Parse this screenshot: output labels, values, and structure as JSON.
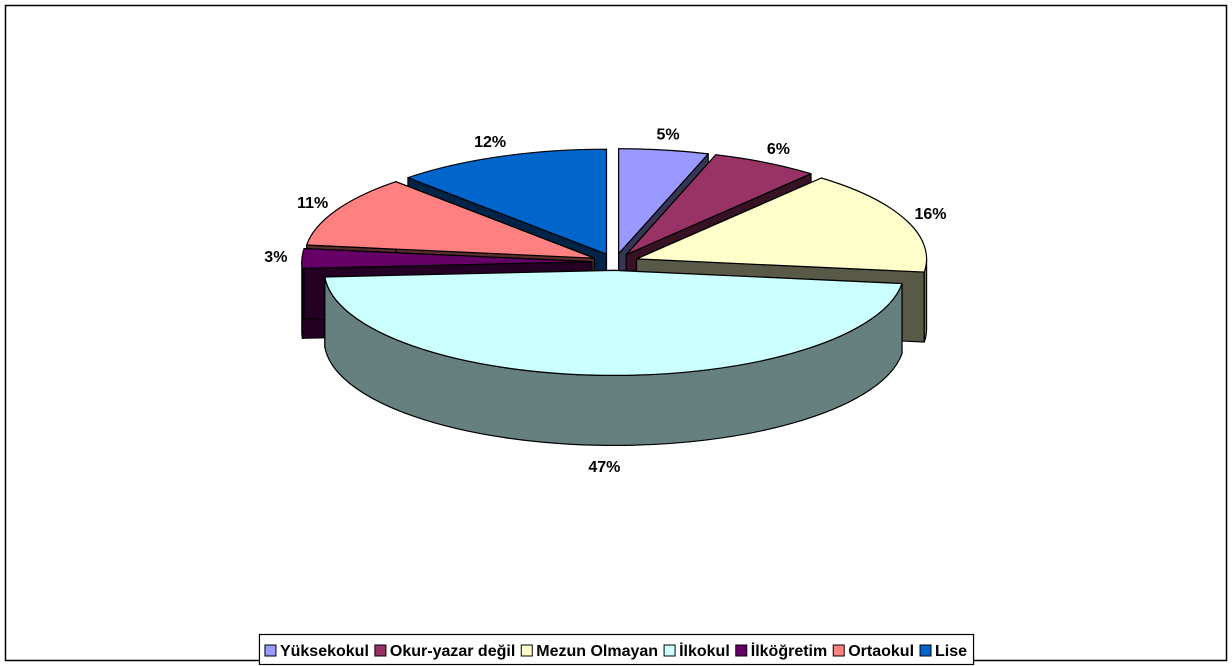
{
  "chart_data": {
    "type": "pie",
    "categories": [
      "Yüksekokul",
      "Okur-yazar değil",
      "Mezun Olmayan",
      "İlkokul",
      "İlköğretim",
      "Ortaokul",
      "Lise"
    ],
    "values": [
      5,
      6,
      16,
      47,
      3,
      11,
      12
    ],
    "value_labels": [
      "5%",
      "6%",
      "16%",
      "47%",
      "3%",
      "11%",
      "12%"
    ],
    "colors": [
      "#9999FF",
      "#993366",
      "#FFFFCC",
      "#CCFFFF",
      "#660066",
      "#FF8080",
      "#0066CC"
    ],
    "legend": "bottom"
  }
}
